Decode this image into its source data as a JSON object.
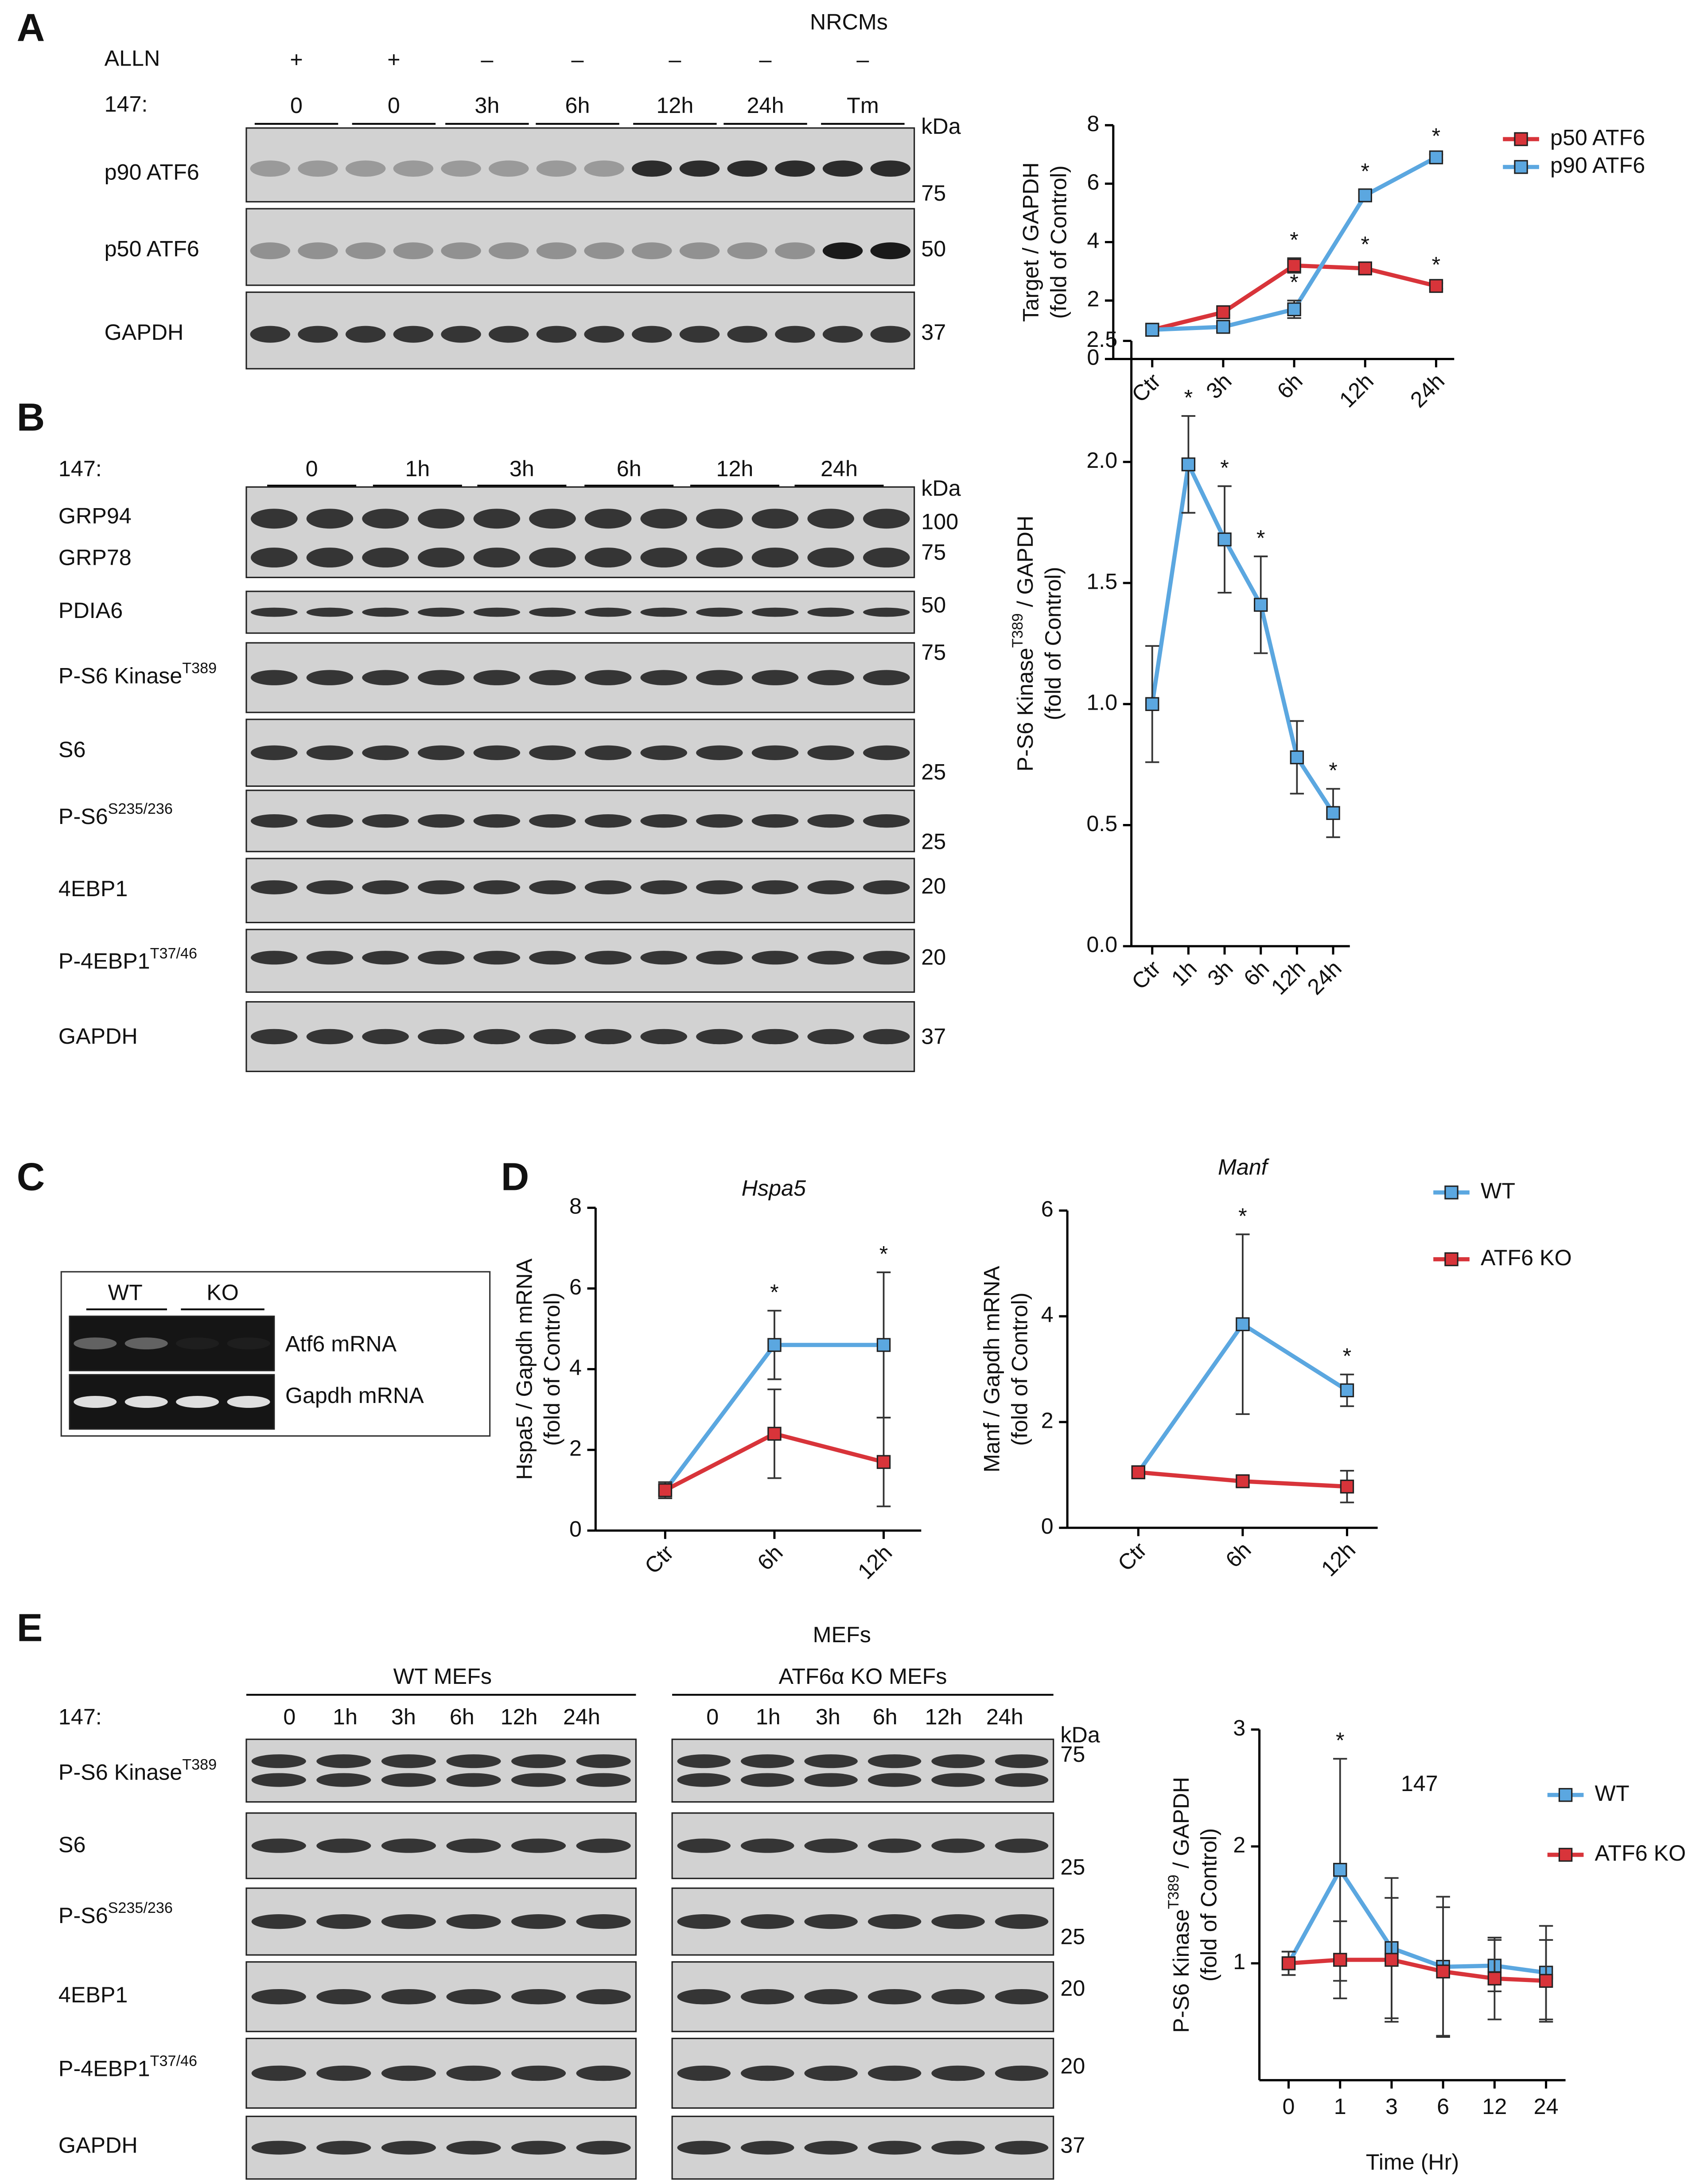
{
  "panel_labels": [
    "A",
    "B",
    "C",
    "D",
    "E"
  ],
  "blot_a": {
    "header": "NRCMs",
    "row_labels": [
      "ALLN",
      "147:"
    ],
    "alln": [
      "+",
      "+",
      "–",
      "–",
      "–",
      "–",
      "–"
    ],
    "treatment": [
      "0",
      "0",
      "3h",
      "6h",
      "12h",
      "24h",
      "Tm"
    ],
    "bands": [
      [
        {
          "t": "p90 ATF6"
        }
      ],
      [
        {
          "t": "p50 ATF6"
        }
      ],
      [
        {
          "t": "GAPDH"
        }
      ]
    ],
    "kda": [
      "kDa",
      "75",
      "50",
      "37"
    ]
  },
  "blot_b": {
    "row_label": "147:",
    "treatment": [
      "0",
      "1h",
      "3h",
      "6h",
      "12h",
      "24h"
    ],
    "bands": [
      [
        {
          "t": "GRP94"
        }
      ],
      [
        {
          "t": "GRP78"
        }
      ],
      [
        {
          "t": "PDIA6"
        }
      ],
      [
        {
          "t": "P-S6 Kinase"
        },
        {
          "t": "T389",
          "sup": true
        }
      ],
      [
        {
          "t": "S6"
        }
      ],
      [
        {
          "t": "P-S6"
        },
        {
          "t": "S235/236",
          "sup": true
        }
      ],
      [
        {
          "t": "4EBP1"
        }
      ],
      [
        {
          "t": "P-4EBP1"
        },
        {
          "t": "T37/46",
          "sup": true
        }
      ],
      [
        {
          "t": "GAPDH"
        }
      ]
    ],
    "kda": [
      "kDa",
      "100",
      "75",
      "50",
      "75",
      "25",
      "25",
      "20",
      "20",
      "37"
    ]
  },
  "gel_c": {
    "groups": [
      "WT",
      "KO"
    ],
    "bands": [
      "Atf6 mRNA",
      "Gapdh mRNA"
    ]
  },
  "blot_e": {
    "header": "MEFs",
    "groups": [
      "WT MEFs",
      "ATF6α KO MEFs"
    ],
    "row_label": "147:",
    "treatment": [
      [
        "0",
        "1h",
        "3h",
        "6h",
        "12h",
        "24h"
      ],
      [
        "0",
        "1h",
        "3h",
        "6h",
        "12h",
        "24h"
      ]
    ],
    "bands": [
      [
        {
          "t": "P-S6 Kinase"
        },
        {
          "t": "T389",
          "sup": true
        }
      ],
      [
        {
          "t": "S6"
        }
      ],
      [
        {
          "t": "P-S6"
        },
        {
          "t": "S235/236",
          "sup": true
        }
      ],
      [
        {
          "t": "4EBP1"
        }
      ],
      [
        {
          "t": "P-4EBP1"
        },
        {
          "t": "T37/46",
          "sup": true
        }
      ],
      [
        {
          "t": "GAPDH"
        }
      ]
    ],
    "kda": [
      "kDa",
      "75",
      "25",
      "25",
      "20",
      "20",
      "37"
    ]
  },
  "chart_data": [
    {
      "type": "line",
      "ylabel": [
        [
          {
            "t": "Target / GAPDH"
          }
        ],
        [
          {
            "t": "(fold of Control)"
          }
        ]
      ],
      "categories": [
        "Ctr",
        "3h",
        "6h",
        "12h",
        "24h"
      ],
      "series": [
        {
          "name": "p50 ATF6",
          "color": "#d8343a",
          "values": [
            1,
            1.6,
            3.2,
            3.1,
            2.5
          ],
          "errors": [
            0.05,
            0.1,
            0.25,
            0.2,
            0.1
          ],
          "significance": [
            null,
            null,
            "*",
            "*",
            "*"
          ]
        },
        {
          "name": "p90 ATF6",
          "color": "#5ba7e0",
          "values": [
            1,
            1.1,
            1.7,
            5.6,
            6.9
          ],
          "errors": [
            0.05,
            0.15,
            0.3,
            0.2,
            0.1
          ],
          "significance": [
            null,
            null,
            "*",
            "*",
            "*"
          ]
        }
      ],
      "ylim": [
        0,
        8
      ],
      "yticks": [
        0,
        2,
        4,
        6,
        8
      ],
      "legend": "right"
    },
    {
      "type": "line",
      "ylabel": [
        [
          {
            "t": "P-S6 Kinase"
          },
          {
            "t": "T389",
            "sup": true
          },
          {
            "t": " / GAPDH"
          }
        ],
        [
          {
            "t": "(fold of Control)"
          }
        ]
      ],
      "categories": [
        "Ctr",
        "1h",
        "3h",
        "6h",
        "12h",
        "24h"
      ],
      "series": [
        {
          "name": "147",
          "color": "#5ba7e0",
          "values": [
            1.0,
            1.99,
            1.68,
            1.41,
            0.78,
            0.55
          ],
          "errors": [
            0.24,
            0.2,
            0.22,
            0.2,
            0.15,
            0.1
          ],
          "significance": [
            null,
            "*",
            "*",
            "*",
            null,
            "*"
          ]
        }
      ],
      "ylim": [
        0,
        2.5
      ],
      "yticks": [
        {
          "value": 0,
          "label": "0.0"
        },
        0.5,
        {
          "value": 1,
          "label": "1.0"
        },
        1.5,
        {
          "value": 2,
          "label": "2.0"
        },
        2.5
      ],
      "legend": "none"
    },
    {
      "type": "line",
      "title": "Hspa5",
      "ylabel": [
        [
          {
            "t": "Hspa5 / Gapdh mRNA"
          }
        ],
        [
          {
            "t": "(fold of Control)"
          }
        ]
      ],
      "categories": [
        "Ctr",
        "6h",
        "12h"
      ],
      "series": [
        {
          "name": "WT",
          "color": "#5ba7e0",
          "values": [
            1,
            4.6,
            4.6
          ],
          "errors": [
            0.2,
            0.85,
            1.8
          ],
          "significance": [
            null,
            "*",
            "*"
          ]
        },
        {
          "name": "ATF6 KO",
          "color": "#d8343a",
          "values": [
            1,
            2.4,
            1.7
          ],
          "errors": [
            0.2,
            1.1,
            1.1
          ],
          "significance": [
            null,
            null,
            null
          ]
        }
      ],
      "ylim": [
        0,
        8
      ],
      "yticks": [
        0,
        2,
        4,
        6,
        8
      ],
      "legend": "none"
    },
    {
      "type": "line",
      "title": "Manf",
      "ylabel": [
        [
          {
            "t": "Manf / Gapdh mRNA"
          }
        ],
        [
          {
            "t": "(fold of Control)"
          }
        ]
      ],
      "categories": [
        "Ctr",
        "6h",
        "12h"
      ],
      "series": [
        {
          "name": "WT",
          "color": "#5ba7e0",
          "values": [
            1.05,
            3.85,
            2.6
          ],
          "errors": [
            0.1,
            1.7,
            0.3
          ],
          "significance": [
            null,
            "*",
            "*"
          ]
        },
        {
          "name": "ATF6 KO",
          "color": "#d8343a",
          "values": [
            1.05,
            0.88,
            0.78
          ],
          "errors": [
            0.1,
            0.1,
            0.3
          ],
          "significance": [
            null,
            null,
            null
          ]
        }
      ],
      "ylim": [
        0,
        6
      ],
      "yticks": [
        0,
        2,
        4,
        6
      ],
      "legend": "right"
    },
    {
      "type": "line",
      "title": "147",
      "xlabel": "Time (Hr)",
      "ylabel": [
        [
          {
            "t": "P-S6 Kinase"
          },
          {
            "t": "T389",
            "sup": true
          },
          {
            "t": " / GAPDH"
          }
        ],
        [
          {
            "t": "(fold of Control)"
          }
        ]
      ],
      "categories": [
        "0",
        "1",
        "3",
        "6",
        "12",
        "24"
      ],
      "series": [
        {
          "name": "WT",
          "color": "#5ba7e0",
          "values": [
            1,
            1.8,
            1.13,
            0.97,
            0.98,
            0.92
          ],
          "errors": [
            0.1,
            0.95,
            0.6,
            0.6,
            0.22,
            0.4
          ],
          "significance": [
            null,
            "*",
            null,
            null,
            null,
            null
          ]
        },
        {
          "name": "ATF6 KO",
          "color": "#d8343a",
          "values": [
            1,
            1.03,
            1.03,
            0.93,
            0.87,
            0.85
          ],
          "errors": [
            0.1,
            0.33,
            0.53,
            0.55,
            0.35,
            0.35
          ],
          "significance": [
            null,
            null,
            null,
            null,
            null,
            null
          ]
        }
      ],
      "ylim": [
        0,
        3
      ],
      "yticks": [
        1,
        2,
        3
      ],
      "legend": "right"
    }
  ]
}
